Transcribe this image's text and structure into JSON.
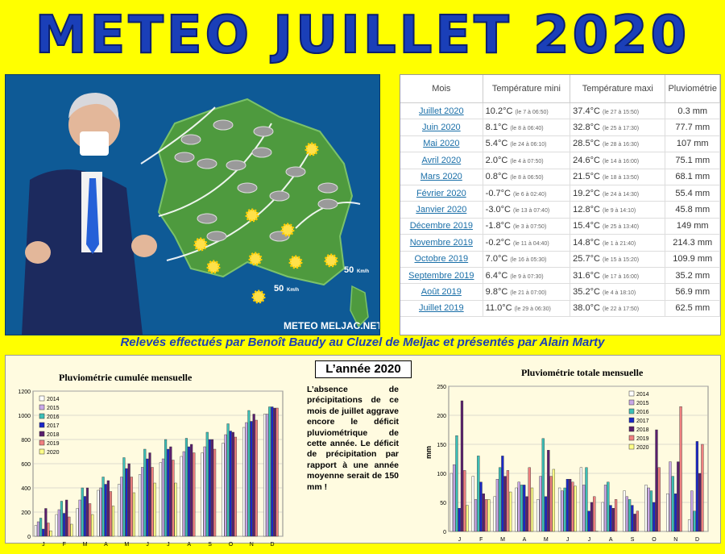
{
  "title": "METEO JUILLET 2020",
  "map": {
    "caption": "METEO MELJAC.NET",
    "wind": [
      {
        "speed": "50",
        "unit": "Km/h"
      },
      {
        "speed": "50",
        "unit": "Km/h"
      }
    ],
    "colors": {
      "sea": "#0e5a96",
      "land": "#4e9a3e"
    }
  },
  "stats": {
    "headers": [
      "Mois",
      "Température mini",
      "Température maxi",
      "Pluviométrie"
    ],
    "rows": [
      {
        "mois": "Juillet 2020",
        "tmin": "10.2°C",
        "tmin_d": "(le 7 à 06:50)",
        "tmax": "37.4°C",
        "tmax_d": "(le 27 à 15:50)",
        "pluie": "0.3 mm"
      },
      {
        "mois": "Juin 2020",
        "tmin": "8.1°C",
        "tmin_d": "(le 8 à 06:40)",
        "tmax": "32.8°C",
        "tmax_d": "(le 25 à 17:30)",
        "pluie": "77.7 mm"
      },
      {
        "mois": "Mai 2020",
        "tmin": "5.4°C",
        "tmin_d": "(le 24 à 06:10)",
        "tmax": "28.5°C",
        "tmax_d": "(le 28 à 16:30)",
        "pluie": "107 mm"
      },
      {
        "mois": "Avril 2020",
        "tmin": "2.0°C",
        "tmin_d": "(le 4 à 07:50)",
        "tmax": "24.6°C",
        "tmax_d": "(le 14 à 16:00)",
        "pluie": "75.1 mm"
      },
      {
        "mois": "Mars 2020",
        "tmin": "0.8°C",
        "tmin_d": "(le 8 à 06:50)",
        "tmax": "21.5°C",
        "tmax_d": "(le 18 à 13:50)",
        "pluie": "68.1 mm"
      },
      {
        "mois": "Février 2020",
        "tmin": "-0.7°C",
        "tmin_d": "(le 6 à 02:40)",
        "tmax": "19.2°C",
        "tmax_d": "(le 24 à 14:30)",
        "pluie": "55.4 mm"
      },
      {
        "mois": "Janvier 2020",
        "tmin": "-3.0°C",
        "tmin_d": "(le 13 à 07:40)",
        "tmax": "12.8°C",
        "tmax_d": "(le 9 à 14:10)",
        "pluie": "45.8 mm"
      },
      {
        "mois": "Décembre 2019",
        "tmin": "-1.8°C",
        "tmin_d": "(le 3 à 07:50)",
        "tmax": "15.4°C",
        "tmax_d": "(le 25 à 13:40)",
        "pluie": "149 mm"
      },
      {
        "mois": "Novembre 2019",
        "tmin": "-0.2°C",
        "tmin_d": "(le 11 à 04:40)",
        "tmax": "14.8°C",
        "tmax_d": "(le 1 à 21:40)",
        "pluie": "214.3 mm"
      },
      {
        "mois": "Octobre 2019",
        "tmin": "7.0°C",
        "tmin_d": "(le 16 à 05:30)",
        "tmax": "25.7°C",
        "tmax_d": "(le 15 à 15:20)",
        "pluie": "109.9 mm"
      },
      {
        "mois": "Septembre 2019",
        "tmin": "6.4°C",
        "tmin_d": "(le 9 à 07:30)",
        "tmax": "31.6°C",
        "tmax_d": "(le 17 à 16:00)",
        "pluie": "35.2 mm"
      },
      {
        "mois": "Août 2019",
        "tmin": "9.8°C",
        "tmin_d": "(le 21 à 07:00)",
        "tmax": "35.2°C",
        "tmax_d": "(le 4 à 18:10)",
        "pluie": "56.9 mm"
      },
      {
        "mois": "Juillet 2019",
        "tmin": "11.0°C",
        "tmin_d": "(le 29 à 06:30)",
        "tmax": "38.0°C",
        "tmax_d": "(le 22 à 17:50)",
        "pluie": "62.5 mm"
      }
    ]
  },
  "credit": "Relevés effectués par Benoît Baudy au Cluzel de Meljac et présentés par Alain Marty",
  "year_box": "L’année 2020",
  "note": "L’absence de précipitations de ce mois de juillet aggrave encore le déficit pluviométrique de cette année. Le déficit de précipitation par rapport à une année moyenne serait de 150 mm !",
  "chart_data": [
    {
      "type": "bar",
      "title": "Pluviométrie cumulée mensuelle",
      "categories": [
        "J",
        "F",
        "M",
        "A",
        "M",
        "J",
        "J",
        "A",
        "S",
        "O",
        "N",
        "D"
      ],
      "ylim": [
        0,
        1200
      ],
      "yticks": [
        0,
        200,
        400,
        600,
        800,
        1000,
        1200
      ],
      "grid": true,
      "legend": "top-left",
      "series": [
        {
          "name": "2014",
          "color": "#ffffff",
          "values": [
            90,
            180,
            230,
            380,
            430,
            510,
            610,
            660,
            690,
            770,
            900,
            1010
          ]
        },
        {
          "name": "2015",
          "color": "#c9a8e8",
          "values": [
            120,
            220,
            300,
            400,
            490,
            570,
            640,
            700,
            740,
            840,
            940,
            1010
          ]
        },
        {
          "name": "2016",
          "color": "#3cc0b8",
          "values": [
            150,
            290,
            400,
            490,
            650,
            720,
            800,
            810,
            860,
            930,
            1040,
            1070
          ]
        },
        {
          "name": "2017",
          "color": "#1a28c8",
          "values": [
            60,
            190,
            330,
            430,
            560,
            640,
            720,
            740,
            800,
            870,
            950,
            1070
          ]
        },
        {
          "name": "2018",
          "color": "#5a1e6e",
          "values": [
            230,
            300,
            400,
            460,
            600,
            690,
            740,
            760,
            800,
            860,
            1010,
            1060
          ]
        },
        {
          "name": "2019",
          "color": "#f08080",
          "values": [
            110,
            160,
            270,
            370,
            490,
            570,
            630,
            690,
            720,
            820,
            960,
            1060
          ]
        },
        {
          "name": "2020",
          "color": "#ffff88",
          "values": [
            45,
            100,
            180,
            250,
            360,
            440,
            440,
            null,
            null,
            null,
            null,
            null
          ]
        }
      ]
    },
    {
      "type": "bar",
      "title": "Pluviométrie totale mensuelle",
      "ylabel": "mm",
      "categories": [
        "J",
        "F",
        "M",
        "A",
        "M",
        "J",
        "J",
        "A",
        "S",
        "O",
        "N",
        "D"
      ],
      "ylim": [
        0,
        250
      ],
      "yticks": [
        0,
        50,
        100,
        150,
        200,
        250
      ],
      "grid": true,
      "legend": "top-right",
      "series": [
        {
          "name": "2014",
          "color": "#ffffff",
          "values": [
            100,
            95,
            60,
            75,
            55,
            75,
            110,
            50,
            70,
            80,
            65,
            20
          ]
        },
        {
          "name": "2015",
          "color": "#c9a8e8",
          "values": [
            115,
            55,
            90,
            85,
            95,
            70,
            80,
            80,
            60,
            75,
            120,
            70
          ]
        },
        {
          "name": "2016",
          "color": "#3cc0b8",
          "values": [
            165,
            130,
            110,
            80,
            160,
            75,
            110,
            85,
            55,
            70,
            95,
            35
          ]
        },
        {
          "name": "2017",
          "color": "#1a28c8",
          "values": [
            40,
            85,
            130,
            80,
            60,
            90,
            35,
            45,
            45,
            50,
            65,
            155
          ]
        },
        {
          "name": "2018",
          "color": "#5a1e6e",
          "values": [
            225,
            65,
            95,
            60,
            140,
            90,
            50,
            40,
            30,
            175,
            120,
            100
          ]
        },
        {
          "name": "2019",
          "color": "#f08080",
          "values": [
            105,
            55,
            105,
            110,
            95,
            85,
            60,
            55,
            35,
            110,
            215,
            150
          ]
        },
        {
          "name": "2020",
          "color": "#ffff88",
          "values": [
            45,
            55,
            68,
            75,
            107,
            78,
            0.3,
            null,
            null,
            null,
            null,
            null
          ]
        }
      ]
    }
  ]
}
